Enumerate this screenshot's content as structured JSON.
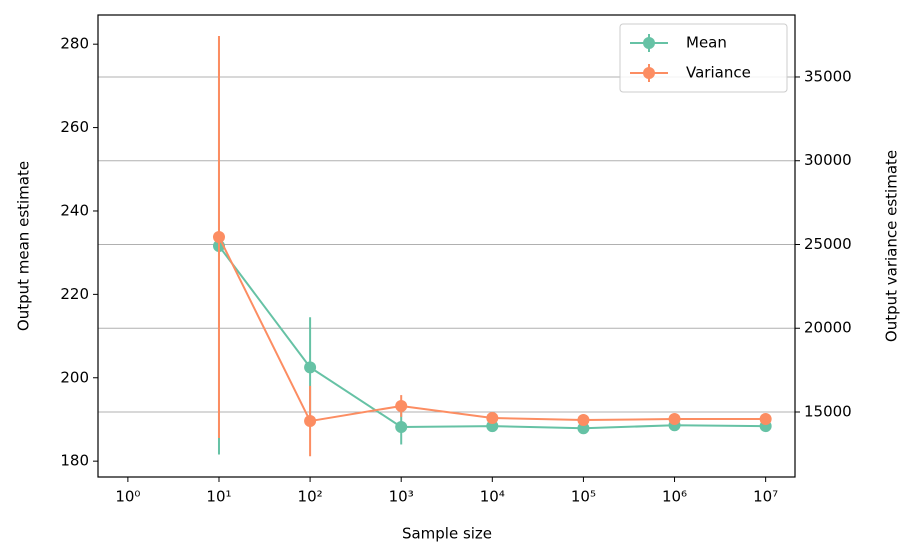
{
  "chart_data": {
    "type": "line",
    "xlabel": "Sample size",
    "ylabel": "Output mean estimate",
    "y2label": "Output variance estimate",
    "x": [
      10,
      100,
      1000,
      10000,
      100000,
      1000000,
      10000000
    ],
    "xscale": "log",
    "xlim": [
      0.47,
      21000000
    ],
    "xticks": [
      {
        "value": 1,
        "label": "10⁰"
      },
      {
        "value": 10,
        "label": "10¹"
      },
      {
        "value": 100,
        "label": "10²"
      },
      {
        "value": 1000,
        "label": "10³"
      },
      {
        "value": 10000,
        "label": "10⁴"
      },
      {
        "value": 100000,
        "label": "10⁵"
      },
      {
        "value": 1000000,
        "label": "10⁶"
      },
      {
        "value": 10000000,
        "label": "10⁷"
      }
    ],
    "ylim": [
      176.2,
      287
    ],
    "yticks": [
      180,
      200,
      220,
      240,
      260,
      280
    ],
    "y2lim": [
      11120,
      38700
    ],
    "y2ticks": [
      15000,
      20000,
      25000,
      30000,
      35000
    ],
    "grid": "y2",
    "legend": "upper right",
    "series": [
      {
        "name": "Mean",
        "color": "#66c2a5",
        "values": [
          231.6,
          202.5,
          188.2,
          188.4,
          187.9,
          188.6,
          188.4
        ],
        "errors": [
          50,
          12,
          4.2,
          1,
          1,
          1,
          1
        ]
      },
      {
        "name": "Variance",
        "color": "#fc8d62",
        "axis": "y2",
        "values": [
          25450,
          14460,
          15360,
          14640,
          14520,
          14580,
          14580
        ],
        "errors": [
          12000,
          2100,
          650,
          200,
          200,
          200,
          200
        ]
      }
    ]
  }
}
